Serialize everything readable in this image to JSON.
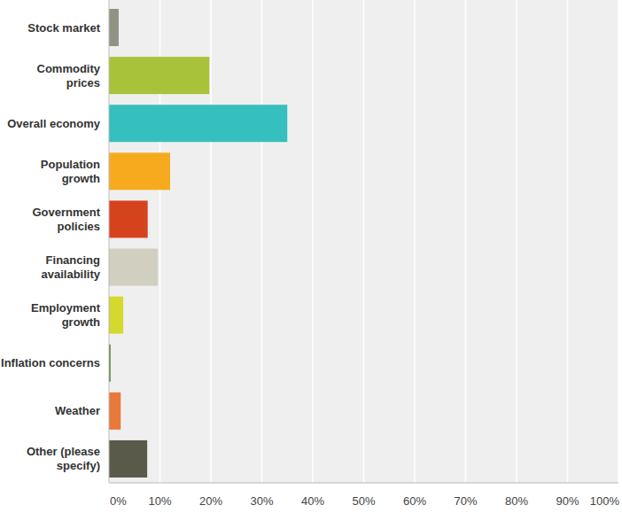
{
  "chart_data": {
    "type": "bar",
    "orientation": "horizontal",
    "grid": true,
    "categories": [
      "Stock market",
      "Commodity prices",
      "Overall economy",
      "Population growth",
      "Government policies",
      "Financing availability",
      "Employment growth",
      "Inflation concerns",
      "Weather",
      "Other (please specify)"
    ],
    "values": [
      1.9,
      19.7,
      35.0,
      12.0,
      7.6,
      9.6,
      2.8,
      0.3,
      2.3,
      7.5
    ],
    "colors": [
      "#8e9384",
      "#a8c23a",
      "#35bfbf",
      "#f6ab1f",
      "#d5431d",
      "#d0cfc0",
      "#d4d92e",
      "#4e7d1e",
      "#e8793a",
      "#5a5a4a"
    ],
    "xlim": [
      0,
      100
    ],
    "xticks": [
      {
        "value": 0,
        "label": "0%"
      },
      {
        "value": 10,
        "label": "10%"
      },
      {
        "value": 20,
        "label": "20%"
      },
      {
        "value": 30,
        "label": "30%"
      },
      {
        "value": 40,
        "label": "40%"
      },
      {
        "value": 50,
        "label": "50%"
      },
      {
        "value": 60,
        "label": "60%"
      },
      {
        "value": 70,
        "label": "70%"
      },
      {
        "value": 80,
        "label": "80%"
      },
      {
        "value": 90,
        "label": "90%"
      },
      {
        "value": 100,
        "label": "100%"
      }
    ]
  }
}
